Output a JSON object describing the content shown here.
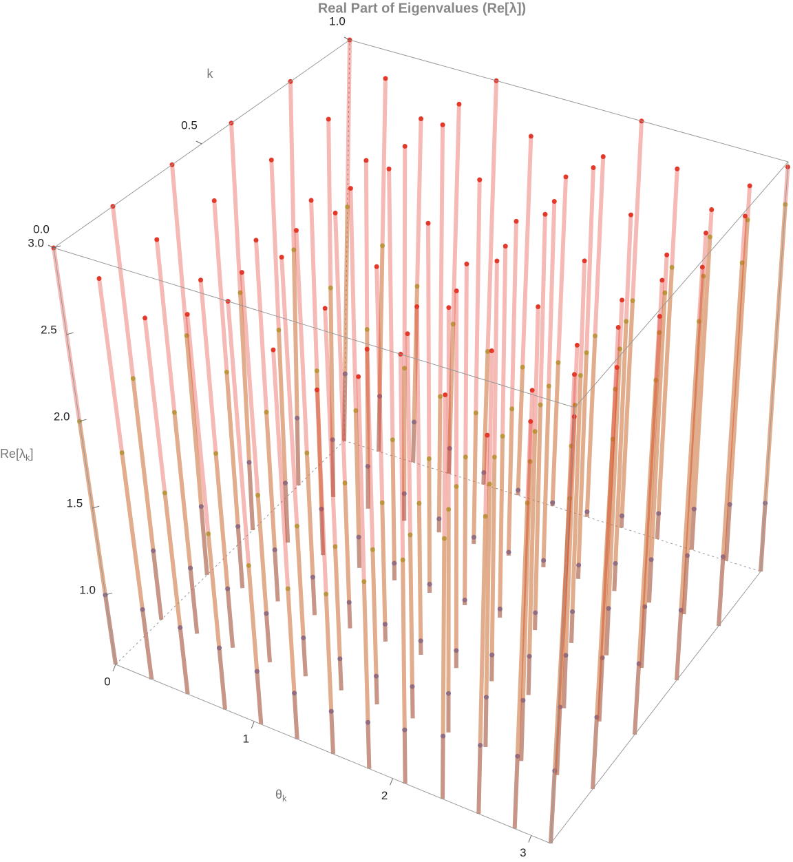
{
  "chart_data": {
    "type": "scatter3d",
    "title": "Real Part of Eigenvalues (Re[λ])",
    "x_label": {
      "text": "θ",
      "sub": "k"
    },
    "y_label": "k",
    "z_label": {
      "text": "Re[λ",
      "sub": "k",
      "end": "]"
    },
    "xlim": [
      0,
      3.14
    ],
    "xticks": [
      0,
      1,
      2,
      3
    ],
    "ylim": [
      0,
      1
    ],
    "yticks": [
      {
        "value": 0,
        "label": "0.0"
      },
      0.5,
      {
        "value": 1,
        "label": "1.0"
      }
    ],
    "zlim": [
      0.6,
      3.0
    ],
    "zticks": [
      {
        "value": 1,
        "label": "1.0"
      },
      1.5,
      {
        "value": 2,
        "label": "2.0"
      },
      2.5,
      {
        "value": 3,
        "label": "3.0"
      }
    ],
    "theta": [
      0,
      0.26,
      0.52,
      0.79,
      1.05,
      1.31,
      1.57,
      1.83,
      2.09,
      2.36,
      2.62,
      2.88,
      3.14
    ],
    "k": [
      0,
      0.2,
      0.4,
      0.6,
      0.8,
      1
    ],
    "surfaces": [
      {
        "color": "#4a68d6",
        "values": [
          [
            1.0,
            1.0,
            0.98,
            0.95,
            0.9,
            0.86,
            0.84,
            0.86,
            0.9,
            0.95,
            0.98,
            1.0,
            1.0
          ],
          [
            1.0,
            0.98,
            0.94,
            0.88,
            0.82,
            0.78,
            0.76,
            0.78,
            0.82,
            0.88,
            0.94,
            0.98,
            1.0
          ],
          [
            1.0,
            0.96,
            0.9,
            0.82,
            0.75,
            0.7,
            0.68,
            0.7,
            0.75,
            0.82,
            0.9,
            0.96,
            1.0
          ],
          [
            1.0,
            0.95,
            0.87,
            0.78,
            0.7,
            0.65,
            0.63,
            0.65,
            0.7,
            0.78,
            0.87,
            0.95,
            1.0
          ],
          [
            1.0,
            0.94,
            0.85,
            0.76,
            0.68,
            0.64,
            0.62,
            0.64,
            0.68,
            0.76,
            0.85,
            0.94,
            1.0
          ],
          [
            1.0,
            0.93,
            0.84,
            0.75,
            0.67,
            0.63,
            0.62,
            0.63,
            0.67,
            0.75,
            0.84,
            0.93,
            1.0
          ]
        ]
      },
      {
        "color": "#a9c64c",
        "values": [
          [
            2.0,
            1.9,
            1.75,
            1.6,
            1.5,
            1.45,
            1.5,
            1.65,
            1.85,
            2.05,
            2.25,
            2.4,
            2.5
          ],
          [
            2.0,
            1.88,
            1.72,
            1.56,
            1.46,
            1.42,
            1.48,
            1.64,
            1.86,
            2.08,
            2.28,
            2.44,
            2.55
          ],
          [
            2.0,
            1.86,
            1.7,
            1.54,
            1.44,
            1.4,
            1.47,
            1.64,
            1.88,
            2.1,
            2.32,
            2.48,
            2.6
          ],
          [
            2.0,
            1.85,
            1.68,
            1.52,
            1.42,
            1.38,
            1.46,
            1.65,
            1.9,
            2.14,
            2.36,
            2.52,
            2.65
          ],
          [
            2.0,
            1.84,
            1.66,
            1.5,
            1.4,
            1.37,
            1.46,
            1.66,
            1.92,
            2.17,
            2.4,
            2.56,
            2.7
          ],
          [
            2.0,
            1.83,
            1.65,
            1.49,
            1.39,
            1.36,
            1.45,
            1.67,
            1.94,
            2.2,
            2.44,
            2.6,
            2.75
          ]
        ]
      },
      {
        "color": "#e2392b",
        "values": [
          [
            3.0,
            2.9,
            2.75,
            2.85,
            3.0,
            2.8,
            2.65,
            2.8,
            3.0,
            2.85,
            2.7,
            2.85,
            2.95
          ],
          [
            3.0,
            2.88,
            2.72,
            2.84,
            3.0,
            2.78,
            2.62,
            2.78,
            3.0,
            2.83,
            2.68,
            2.84,
            2.95
          ],
          [
            3.0,
            2.86,
            2.7,
            2.83,
            3.0,
            2.76,
            2.6,
            2.76,
            3.0,
            2.81,
            2.66,
            2.83,
            2.96
          ],
          [
            3.0,
            2.85,
            2.68,
            2.82,
            3.0,
            2.75,
            2.58,
            2.75,
            3.0,
            2.8,
            2.64,
            2.82,
            2.96
          ],
          [
            3.0,
            2.84,
            2.66,
            2.81,
            3.0,
            2.74,
            2.56,
            2.74,
            3.0,
            2.79,
            2.62,
            2.81,
            2.97
          ],
          [
            3.0,
            2.83,
            2.65,
            2.8,
            3.0,
            2.73,
            2.55,
            2.73,
            3.0,
            2.78,
            2.6,
            2.8,
            2.97
          ]
        ]
      }
    ]
  }
}
